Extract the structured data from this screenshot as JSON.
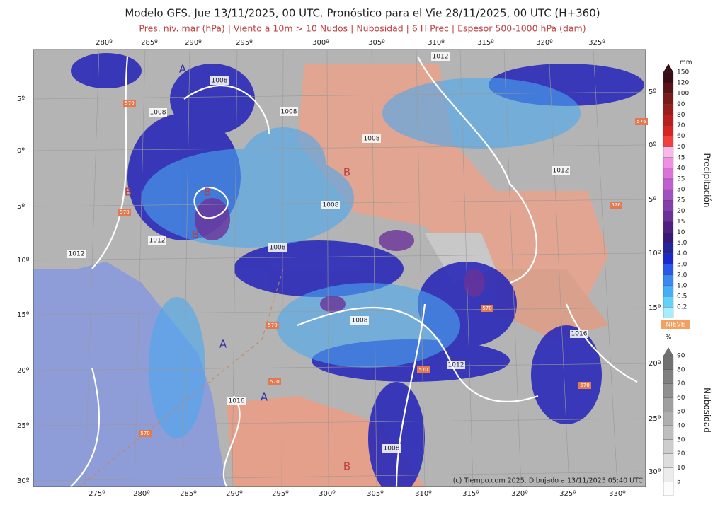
{
  "header": {
    "title": "Modelo GFS. Jue 13/11/2025, 00 UTC. Pronóstico para el Vie 28/11/2025, 00 UTC (H+360)",
    "subtitle": "Pres. niv. mar (hPa) | Viento a 10m > 10 Nudos | Nubosidad | 6 H Prec | Espesor 500-1000 hPa (dam)"
  },
  "map": {
    "top_longitudes": [
      "280º",
      "285º",
      "290º",
      "295º",
      "300º",
      "305º",
      "310º",
      "315º",
      "320º",
      "325º"
    ],
    "bottom_longitudes": [
      "275º",
      "280º",
      "285º",
      "290º",
      "295º",
      "300º",
      "305º",
      "310º",
      "315º",
      "320º",
      "325º",
      "330º"
    ],
    "left_latitudes": [
      "5º",
      "0º",
      "5º",
      "10º",
      "15º",
      "20º",
      "25º",
      "30º"
    ],
    "right_latitudes": [
      "5º",
      "0º",
      "5º",
      "10º",
      "15º",
      "20º",
      "25º",
      "30º"
    ],
    "isobar_labels": [
      "1012",
      "1008",
      "1008",
      "1008",
      "1008",
      "1012",
      "1008",
      "1008",
      "1012",
      "1012",
      "1008",
      "1016",
      "1012",
      "1016",
      "1008"
    ],
    "pressure_centers": [
      "A",
      "B",
      "B",
      "B",
      "B",
      "A",
      "A",
      "B"
    ],
    "thickness_labels": [
      "570",
      "570",
      "570",
      "570",
      "570",
      "570",
      "570",
      "576",
      "576",
      "570"
    ]
  },
  "legend": {
    "precip": {
      "unit": "mm",
      "title": "Precipitación",
      "levels": [
        "150",
        "120",
        "100",
        "90",
        "80",
        "70",
        "60",
        "50",
        "45",
        "40",
        "35",
        "30",
        "25",
        "20",
        "15",
        "10",
        "5.0",
        "4.0",
        "3.0",
        "2.0",
        "1.0",
        "0.5",
        "0.2"
      ]
    },
    "snow": "NIEVE",
    "cloud": {
      "unit": "%",
      "title": "Nubosidad",
      "levels": [
        "90",
        "80",
        "70",
        "60",
        "50",
        "40",
        "30",
        "20",
        "10",
        "5"
      ]
    }
  },
  "credit": "(c) Tiempo.com 2025. Dibujado a 13/11/2025 05:40 UTC"
}
